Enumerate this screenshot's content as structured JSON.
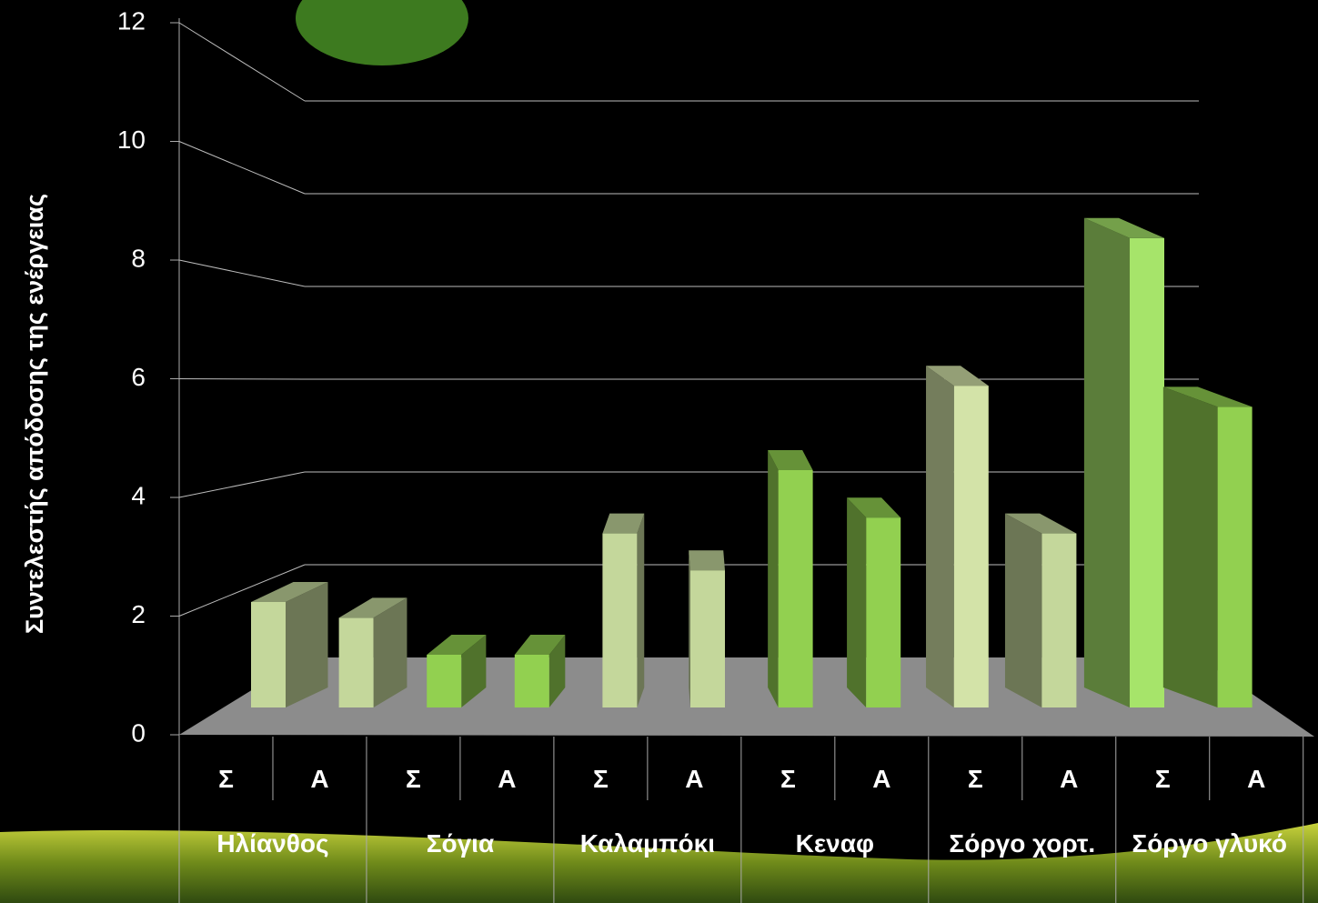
{
  "chart_data": {
    "type": "bar3d",
    "y_label": "Συντελεστής απόδοσης της ενέργειας",
    "categories": [
      "Σ",
      "Α",
      "Σ",
      "Α",
      "Σ",
      "Α",
      "Σ",
      "Α",
      "Σ",
      "Α",
      "Σ",
      "Α"
    ],
    "groups": [
      "Ηλίανθος",
      "Σόγια",
      "Καλαμπόκι",
      "Κεναφ",
      "Σόργο χορτ.",
      "Σόργο γλυκό"
    ],
    "values": [
      2.0,
      1.7,
      1.0,
      1.0,
      3.3,
      2.6,
      4.5,
      3.6,
      6.1,
      3.3,
      8.9,
      5.7
    ],
    "colors": [
      "#c4d79b",
      "#c4d79b",
      "#92d050",
      "#92d050",
      "#c4d79b",
      "#c4d79b",
      "#92d050",
      "#92d050",
      "#d3e3a8",
      "#c4d79b",
      "#a6e46a",
      "#92d050"
    ],
    "ylim": [
      0,
      12
    ],
    "yticks": [
      0,
      2,
      4,
      6,
      8,
      10,
      12
    ],
    "grid": true
  }
}
